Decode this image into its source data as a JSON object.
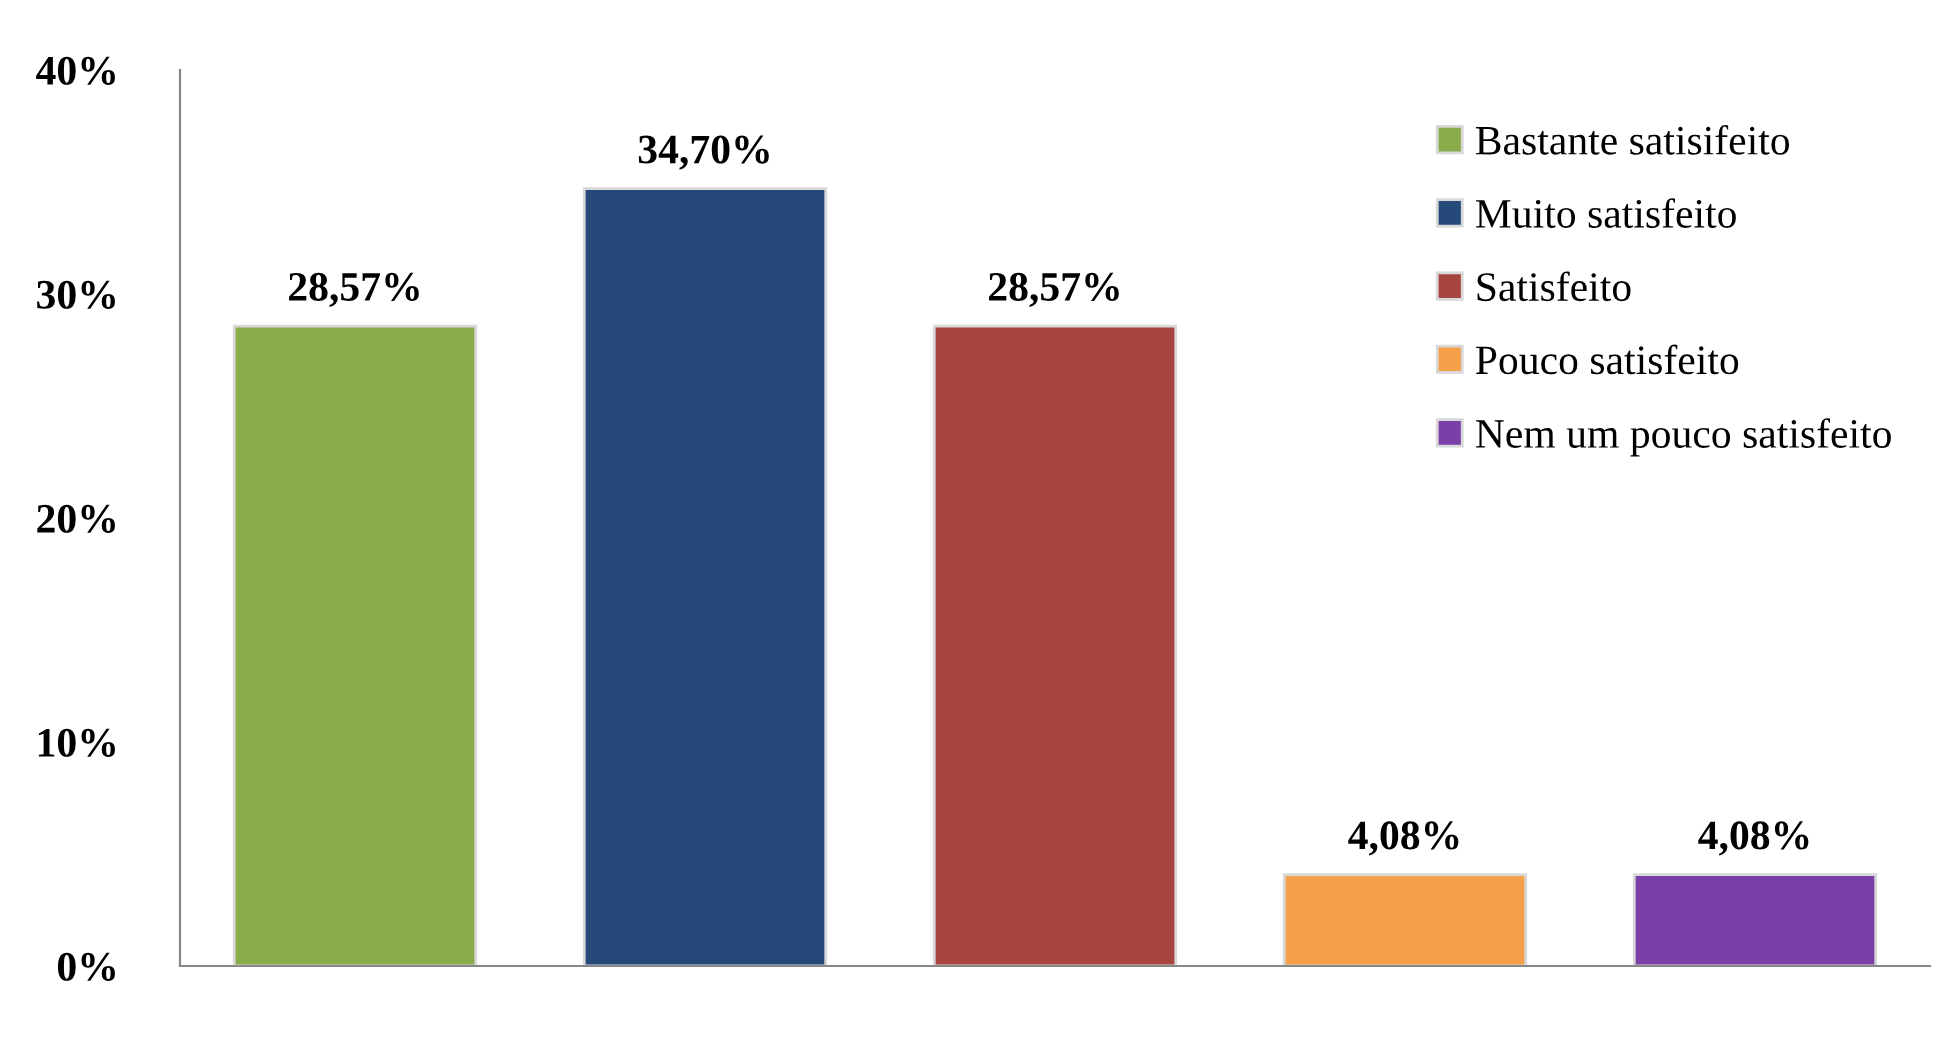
{
  "chart_data": {
    "type": "bar",
    "categories": [
      null,
      null,
      null,
      null,
      null
    ],
    "series": [
      {
        "name": "Bastante satisifeito",
        "color": "#8aab4a",
        "values": [
          28.57,
          null,
          null,
          null,
          null
        ],
        "value_labels": [
          "28,57%",
          null,
          null,
          null,
          null
        ]
      },
      {
        "name": "Muito satisfeito",
        "color": "#254a7a",
        "values": [
          null,
          34.7,
          null,
          null,
          null
        ],
        "value_labels": [
          null,
          "34,70%",
          null,
          null,
          null
        ]
      },
      {
        "name": "Satisfeito",
        "color": "#a8443f",
        "values": [
          null,
          null,
          28.57,
          null,
          null
        ],
        "value_labels": [
          null,
          null,
          "28,57%",
          null,
          null
        ]
      },
      {
        "name": "Pouco satisfeito",
        "color": "#f5a04a",
        "values": [
          null,
          null,
          null,
          4.08,
          null
        ],
        "value_labels": [
          null,
          null,
          null,
          "4,08%",
          null
        ]
      },
      {
        "name": "Nem um pouco satisfeito",
        "color": "#7b3fa8",
        "values": [
          null,
          null,
          null,
          null,
          4.08
        ],
        "value_labels": [
          null,
          null,
          null,
          null,
          "4,08%"
        ]
      }
    ],
    "ylim": [
      0,
      40
    ],
    "yticks": [
      {
        "value": 0,
        "label": "0%"
      },
      {
        "value": 10,
        "label": "10%"
      },
      {
        "value": 20,
        "label": "20%"
      },
      {
        "value": 30,
        "label": "30%"
      },
      {
        "value": 40,
        "label": "40%"
      }
    ],
    "grid": false,
    "legend": "top right"
  }
}
